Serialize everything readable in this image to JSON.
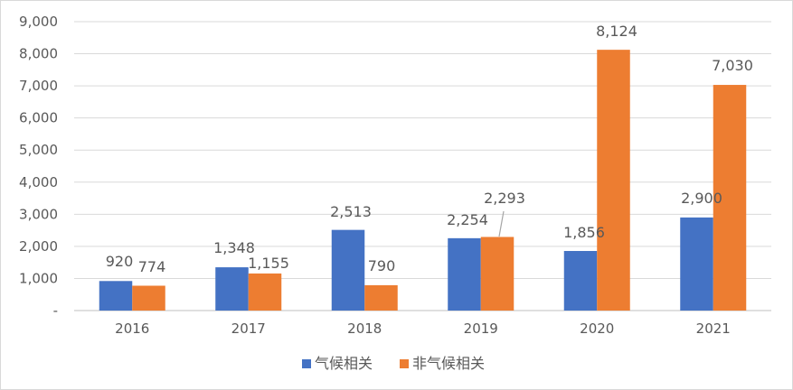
{
  "chart_data": {
    "type": "bar",
    "categories": [
      "2016",
      "2017",
      "2018",
      "2019",
      "2020",
      "2021"
    ],
    "series": [
      {
        "name": "气候相关",
        "color": "#4472C4",
        "values": [
          920,
          1348,
          2513,
          2254,
          1856,
          2900
        ]
      },
      {
        "name": "非气候相关",
        "color": "#ED7D31",
        "values": [
          774,
          1155,
          790,
          2293,
          8124,
          7030
        ]
      }
    ],
    "ylim": [
      0,
      9000
    ],
    "yticks": [
      0,
      1000,
      2000,
      3000,
      4000,
      5000,
      6000,
      7000,
      8000,
      9000
    ],
    "ytick_labels": [
      "-",
      "1,000",
      "2,000",
      "3,000",
      "4,000",
      "5,000",
      "6,000",
      "7,000",
      "8,000",
      "9,000"
    ],
    "data_labels": [
      [
        "920",
        "1,348",
        "2,513",
        "2,254",
        "1,856",
        "2,900"
      ],
      [
        "774",
        "1,155",
        "790",
        "2,293",
        "8,124",
        "7,030"
      ]
    ],
    "grid": true,
    "legend_position": "bottom"
  }
}
